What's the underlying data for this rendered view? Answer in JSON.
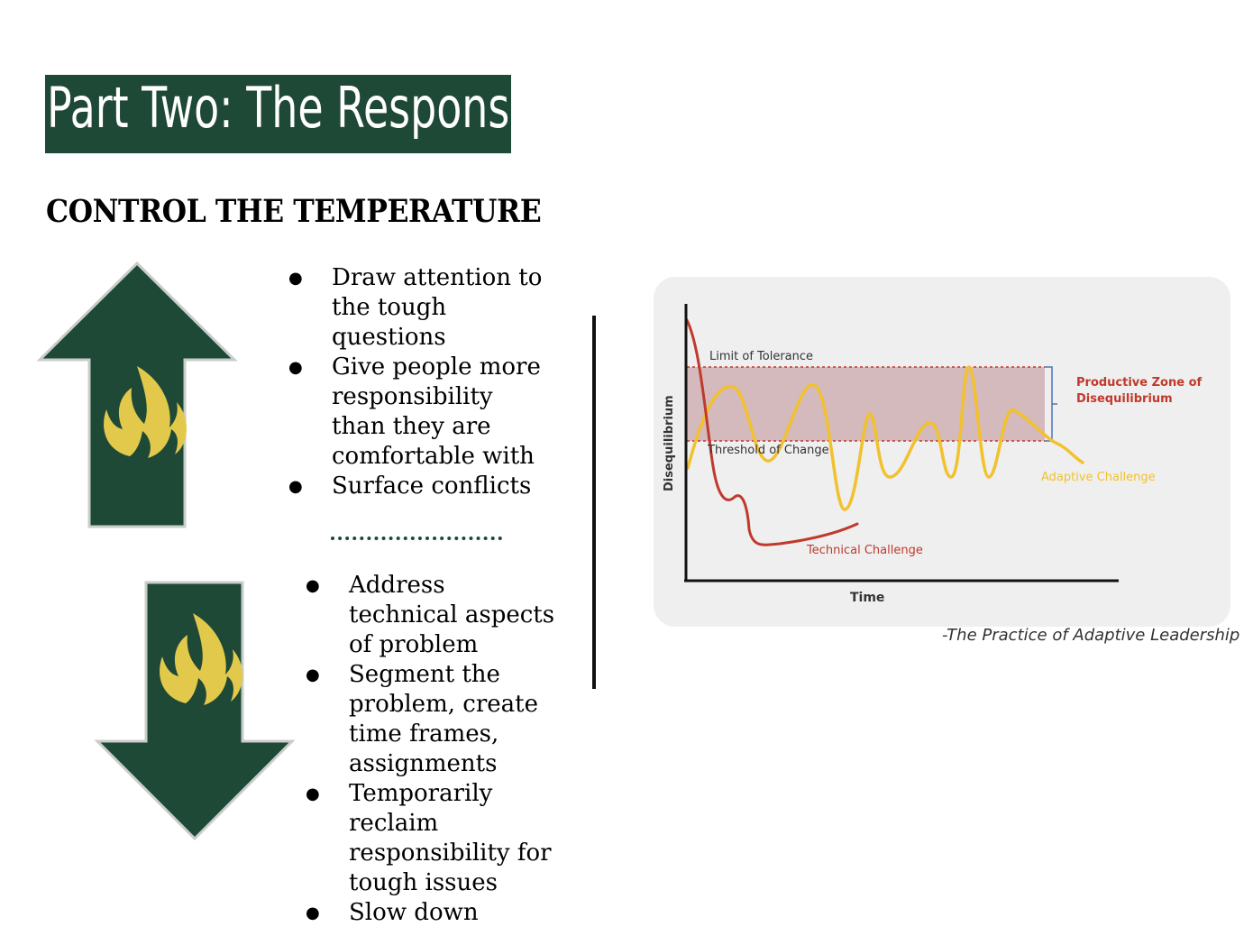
{
  "slide": {
    "title": "Part Two:  The Response",
    "subtitle": "CONTROL THE TEMPERATURE"
  },
  "raise_heat": {
    "icon": "up-arrow-flame-icon",
    "items": [
      "Draw attention to the tough questions",
      "Give people more responsibility than they are comfortable with",
      "Surface conflicts"
    ]
  },
  "lower_heat": {
    "icon": "down-arrow-flame-icon",
    "items": [
      "Address technical aspects of problem",
      "Segment the problem, create time frames, assignments",
      "Temporarily reclaim responsibility for tough issues",
      "Slow down"
    ]
  },
  "diagram": {
    "y_axis_label": "Disequilibrium",
    "x_axis_label": "Time",
    "limit_label": "Limit of Tolerance",
    "threshold_label": "Threshold of Change",
    "zone_label_line1": "Productive Zone of",
    "zone_label_line2": "Disequilibrium",
    "adaptive_label": "Adaptive Challenge",
    "technical_label": "Technical Challenge",
    "caption": "-The Practice of Adaptive Leadership"
  },
  "colors": {
    "brand_green": "#1e4936",
    "flame_yellow": "#e2c94c",
    "zone_fill": "#d4b9bd",
    "technical_line": "#c0392b",
    "adaptive_line": "#f2c12e",
    "zone_label": "#c0392b"
  }
}
